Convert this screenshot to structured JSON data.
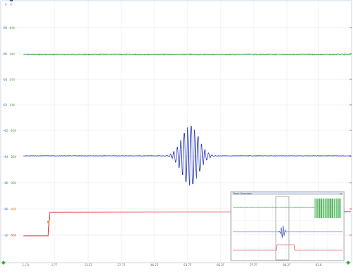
{
  "colors": {
    "grid": "#dfe6ee",
    "axis": "#b7c6d6",
    "green": "#1e9c2a",
    "blue": "#2233bb",
    "red": "#e11f1f",
    "label_blue": "#3a6aa8",
    "label_green": "#5b9a3a",
    "label_orange": "#d9822b",
    "label_red": "#d92b2b"
  },
  "top_labels": [
    "0",
    "0"
  ],
  "y_labels_left": [
    "-10",
    "-08",
    "-06",
    "-04",
    "-02",
    "02",
    "04",
    "06",
    "08"
  ],
  "y_labels_right": [
    "-500",
    "-400",
    "-300",
    "-200",
    "-100",
    "100",
    "200",
    "300",
    "400"
  ],
  "x_labels": [
    "2.77",
    "13.27",
    "27.77",
    "40.27",
    "53.77",
    "66.27",
    "77.77",
    "80.27",
    "93.8"
  ],
  "x_left_label": "1+7s",
  "overview": {
    "title": "Trace Overview"
  },
  "icons": {
    "start_marker": "diamond-marker-icon",
    "end_marker": "diamond-marker-icon",
    "close": "close-icon"
  }
}
